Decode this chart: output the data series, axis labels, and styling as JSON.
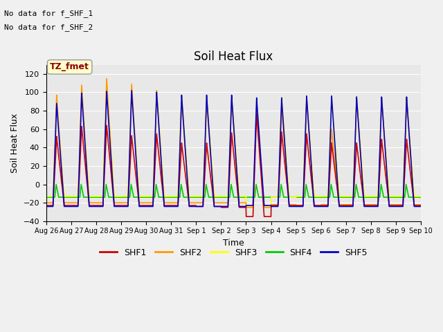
{
  "title": "Soil Heat Flux",
  "ylabel": "Soil Heat Flux",
  "xlabel": "Time",
  "ylim": [
    -40,
    130
  ],
  "yticks": [
    -40,
    -20,
    0,
    20,
    40,
    60,
    80,
    100,
    120
  ],
  "plot_bg": "#e8e8e8",
  "fig_bg": "#f0f0f0",
  "text_lines": [
    "No data for f_SHF_1",
    "No data for f_SHF_2"
  ],
  "legend_label": "TZ_fmet",
  "line_colors": {
    "SHF1": "#cc0000",
    "SHF2": "#ff9900",
    "SHF3": "#ffff00",
    "SHF4": "#00cc00",
    "SHF5": "#0000cc"
  },
  "xtick_labels": [
    "Aug 26",
    "Aug 27",
    "Aug 28",
    "Aug 29",
    "Aug 30",
    "Aug 31",
    "Sep 1",
    "Sep 2",
    "Sep 3",
    "Sep 4",
    "Sep 5",
    "Sep 6",
    "Sep 7",
    "Sep 8",
    "Sep 9",
    "Sep 10"
  ],
  "peaks_shf1": [
    52,
    63,
    64,
    53,
    55,
    45,
    45,
    56,
    77,
    57,
    55,
    45,
    45,
    49,
    49
  ],
  "peaks_shf2": [
    97,
    108,
    115,
    109,
    102,
    92,
    92,
    92,
    84,
    84,
    95,
    60,
    95,
    94,
    94
  ],
  "peaks_shf3": [
    88,
    100,
    113,
    101,
    101,
    97,
    97,
    97,
    93,
    95,
    96,
    96,
    96,
    94,
    95
  ],
  "peaks_shf5": [
    88,
    99,
    101,
    102,
    100,
    97,
    97,
    97,
    94,
    94,
    96,
    96,
    95,
    95,
    95
  ],
  "trough_shf1": [
    -23,
    -23,
    -23,
    -23,
    -23,
    -23,
    -24,
    -25,
    -35,
    -23,
    -23,
    -23,
    -23,
    -23,
    -23
  ],
  "trough_shf2": [
    -20,
    -20,
    -20,
    -20,
    -20,
    -20,
    -20,
    -20,
    -25,
    -22,
    -23,
    -22,
    -22,
    -22,
    -22
  ],
  "trough_shf3": [
    -13,
    -13,
    -13,
    -13,
    -13,
    -13,
    -13,
    -13,
    -25,
    -14,
    -13,
    -13,
    -13,
    -13,
    -13
  ],
  "trough_shf5": [
    -24,
    -24,
    -24,
    -24,
    -24,
    -24,
    -24,
    -24,
    -23,
    -24,
    -24,
    -24,
    -24,
    -24,
    -24
  ],
  "num_days": 15,
  "pts_per_day": 96
}
